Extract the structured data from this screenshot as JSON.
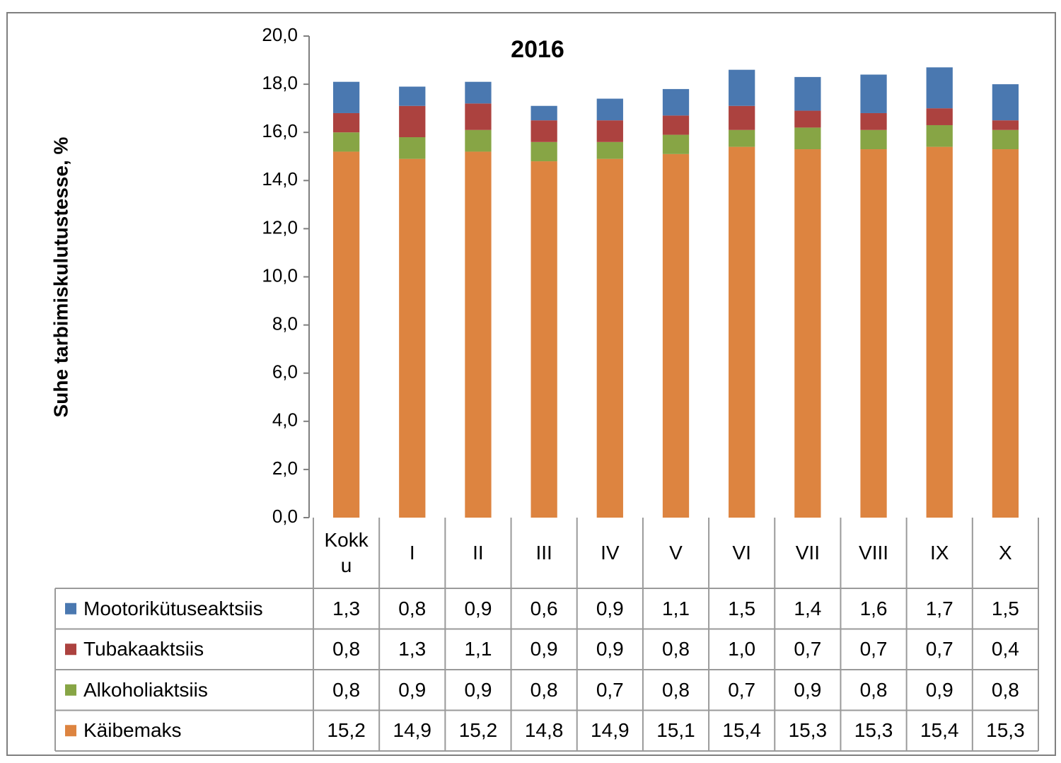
{
  "chart_data": {
    "type": "stacked_bar",
    "title": "2016",
    "y_label": "Suhe tarbimiskulutustesse, %",
    "categories": [
      "Kokku",
      "I",
      "II",
      "III",
      "IV",
      "V",
      "VI",
      "VII",
      "VIII",
      "IX",
      "X"
    ],
    "series": [
      {
        "name": "Käibemaks",
        "color": "#dd8440",
        "values": [
          15.2,
          14.9,
          15.2,
          14.8,
          14.9,
          15.1,
          15.4,
          15.3,
          15.3,
          15.4,
          15.3
        ],
        "value_labels": [
          "15,2",
          "14,9",
          "15,2",
          "14,8",
          "14,9",
          "15,1",
          "15,4",
          "15,3",
          "15,3",
          "15,4",
          "15,3"
        ]
      },
      {
        "name": "Alkoholiaktsiis",
        "color": "#87a545",
        "values": [
          0.8,
          0.9,
          0.9,
          0.8,
          0.7,
          0.8,
          0.7,
          0.9,
          0.8,
          0.9,
          0.8
        ],
        "value_labels": [
          "0,8",
          "0,9",
          "0,9",
          "0,8",
          "0,7",
          "0,8",
          "0,7",
          "0,9",
          "0,8",
          "0,9",
          "0,8"
        ]
      },
      {
        "name": "Tubakaaktsiis",
        "color": "#ac423f",
        "values": [
          0.8,
          1.3,
          1.1,
          0.9,
          0.9,
          0.8,
          1.0,
          0.7,
          0.7,
          0.7,
          0.4
        ],
        "value_labels": [
          "0,8",
          "1,3",
          "1,1",
          "0,9",
          "0,9",
          "0,8",
          "1,0",
          "0,7",
          "0,7",
          "0,7",
          "0,4"
        ]
      },
      {
        "name": "Mootorikütuseaktsiis",
        "color": "#4a78b0",
        "values": [
          1.3,
          0.8,
          0.9,
          0.6,
          0.9,
          1.1,
          1.5,
          1.4,
          1.6,
          1.7,
          1.5
        ],
        "value_labels": [
          "1,3",
          "0,8",
          "0,9",
          "0,6",
          "0,9",
          "1,1",
          "1,5",
          "1,4",
          "1,6",
          "1,7",
          "1,5"
        ]
      }
    ],
    "ylim": [
      0,
      20
    ],
    "yticks": [
      {
        "value": 0,
        "label": "0,0"
      },
      {
        "value": 2,
        "label": "2,0"
      },
      {
        "value": 4,
        "label": "4,0"
      },
      {
        "value": 6,
        "label": "6,0"
      },
      {
        "value": 8,
        "label": "8,0"
      },
      {
        "value": 10,
        "label": "10,0"
      },
      {
        "value": 12,
        "label": "12,0"
      },
      {
        "value": 14,
        "label": "14,0"
      },
      {
        "value": 16,
        "label": "16,0"
      },
      {
        "value": 18,
        "label": "18,0"
      },
      {
        "value": 20,
        "label": "20,0"
      }
    ],
    "legend": "table"
  }
}
